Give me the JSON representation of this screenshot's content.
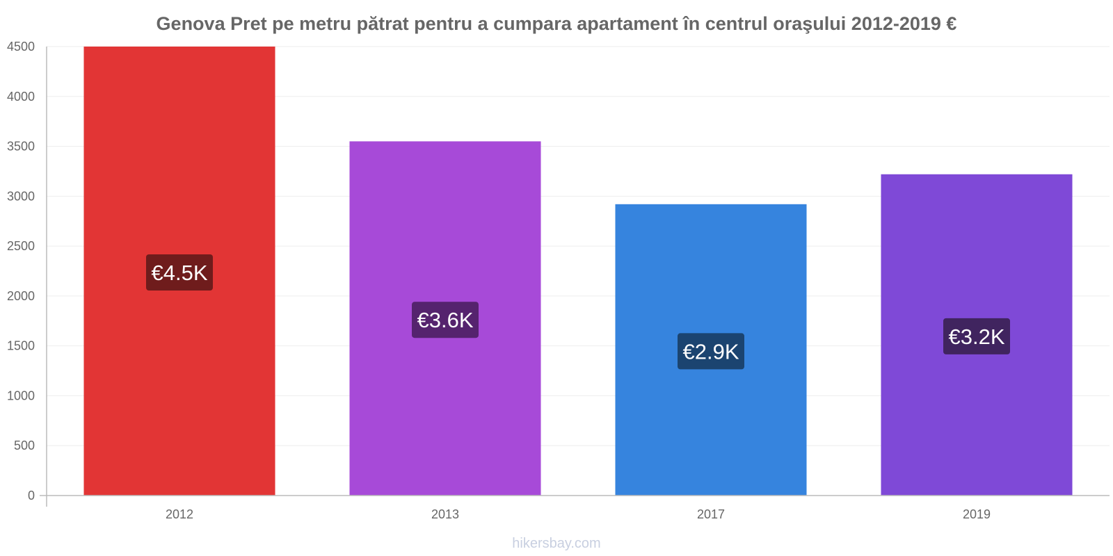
{
  "chart_data": {
    "type": "bar",
    "title": "Genova Pret pe metru pătrat pentru a cumpara apartament în centrul oraşului 2012-2019 €",
    "xlabel": "",
    "ylabel": "",
    "categories": [
      "2012",
      "2013",
      "2017",
      "2019"
    ],
    "values": [
      4500,
      3550,
      2920,
      3220
    ],
    "data_labels": [
      "€4.5K",
      "€3.6K",
      "€2.9K",
      "€3.2K"
    ],
    "bar_colors": [
      "#e23535",
      "#a74ad8",
      "#3684de",
      "#7f49d7"
    ],
    "label_bg_colors": [
      "#6f1c1c",
      "#55236e",
      "#1b4470",
      "#40245f"
    ],
    "ylim": [
      0,
      4500
    ],
    "yticks": [
      "0",
      "500",
      "1000",
      "1500",
      "2000",
      "2500",
      "3000",
      "3500",
      "4000",
      "4500"
    ],
    "grid": true,
    "legend": "none"
  },
  "watermark": "hikersbay.com"
}
